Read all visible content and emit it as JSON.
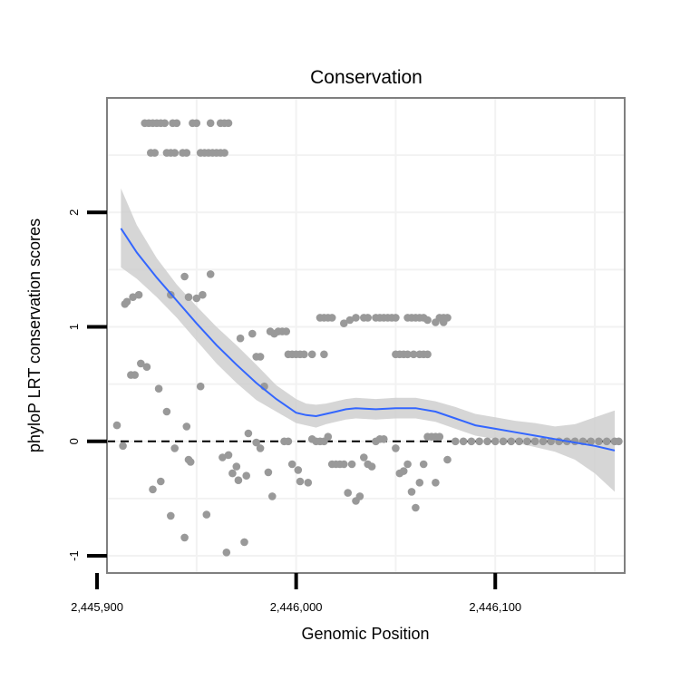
{
  "chart_data": {
    "type": "scatter",
    "title": "Conservation",
    "xlabel": "Genomic Position",
    "ylabel": "phyloP LRT conservation scores",
    "xlim": [
      2445905,
      2446165
    ],
    "ylim": [
      -1.15,
      3.0
    ],
    "x_ticks": [
      2445900,
      2446000,
      2446100
    ],
    "x_tick_labels": [
      "2,445,900",
      "2,446,000",
      "2,446,100"
    ],
    "y_ticks": [
      -1,
      0,
      1,
      2
    ],
    "y_tick_labels": [
      "-1",
      "0",
      "1",
      "2"
    ],
    "grid": true,
    "reference_line": {
      "y": 0,
      "style": "dashed",
      "color": "#000000"
    },
    "colors": {
      "points": "#999999",
      "smooth": "#3366ff",
      "ribbon": "#cccccc",
      "panel_border": "#7f7f7f",
      "grid": "#f2f2f2"
    },
    "series": [
      {
        "name": "observed scores",
        "kind": "points",
        "points": [
          [
            2445924,
            2.78
          ],
          [
            2445926,
            2.78
          ],
          [
            2445928,
            2.78
          ],
          [
            2445930,
            2.78
          ],
          [
            2445932,
            2.78
          ],
          [
            2445934,
            2.78
          ],
          [
            2445938,
            2.78
          ],
          [
            2445940,
            2.78
          ],
          [
            2445948,
            2.78
          ],
          [
            2445950,
            2.78
          ],
          [
            2445957,
            2.78
          ],
          [
            2445962,
            2.78
          ],
          [
            2445964,
            2.78
          ],
          [
            2445966,
            2.78
          ],
          [
            2445927,
            2.52
          ],
          [
            2445929,
            2.52
          ],
          [
            2445935,
            2.52
          ],
          [
            2445937,
            2.52
          ],
          [
            2445939,
            2.52
          ],
          [
            2445943,
            2.52
          ],
          [
            2445945,
            2.52
          ],
          [
            2445952,
            2.52
          ],
          [
            2445954,
            2.52
          ],
          [
            2445956,
            2.52
          ],
          [
            2445958,
            2.52
          ],
          [
            2445960,
            2.52
          ],
          [
            2445962,
            2.52
          ],
          [
            2445964,
            2.52
          ],
          [
            2445957,
            1.46
          ],
          [
            2445944,
            1.44
          ],
          [
            2445937,
            1.28
          ],
          [
            2445953,
            1.28
          ],
          [
            2445946,
            1.26
          ],
          [
            2445950,
            1.25
          ],
          [
            2445914,
            1.2
          ],
          [
            2445915,
            1.22
          ],
          [
            2445918,
            1.26
          ],
          [
            2445921,
            1.28
          ],
          [
            2445925,
            0.65
          ],
          [
            2445917,
            0.58
          ],
          [
            2445919,
            0.58
          ],
          [
            2445931,
            0.46
          ],
          [
            2445952,
            0.48
          ],
          [
            2445972,
            0.9
          ],
          [
            2445978,
            0.94
          ],
          [
            2445980,
            0.74
          ],
          [
            2445982,
            0.74
          ],
          [
            2445984,
            0.48
          ],
          [
            2445987,
            0.96
          ],
          [
            2445989,
            0.94
          ],
          [
            2445991,
            0.96
          ],
          [
            2445993,
            0.96
          ],
          [
            2445995,
            0.96
          ],
          [
            2445996,
            0.76
          ],
          [
            2445998,
            0.76
          ],
          [
            2446000,
            0.76
          ],
          [
            2446002,
            0.76
          ],
          [
            2446004,
            0.76
          ],
          [
            2446008,
            0.76
          ],
          [
            2446014,
            0.76
          ],
          [
            2446012,
            1.08
          ],
          [
            2446014,
            1.08
          ],
          [
            2446016,
            1.08
          ],
          [
            2446018,
            1.08
          ],
          [
            2446024,
            1.03
          ],
          [
            2446027,
            1.06
          ],
          [
            2446030,
            1.08
          ],
          [
            2446034,
            1.08
          ],
          [
            2446036,
            1.08
          ],
          [
            2446040,
            1.08
          ],
          [
            2446042,
            1.08
          ],
          [
            2446044,
            1.08
          ],
          [
            2446046,
            1.08
          ],
          [
            2446048,
            1.08
          ],
          [
            2446050,
            1.08
          ],
          [
            2446050,
            0.76
          ],
          [
            2446052,
            0.76
          ],
          [
            2446054,
            0.76
          ],
          [
            2446056,
            0.76
          ],
          [
            2446059,
            0.76
          ],
          [
            2446062,
            0.76
          ],
          [
            2446064,
            0.76
          ],
          [
            2446066,
            0.76
          ],
          [
            2446070,
            1.04
          ],
          [
            2446074,
            1.04
          ],
          [
            2446076,
            1.08
          ],
          [
            2446056,
            1.08
          ],
          [
            2446058,
            1.08
          ],
          [
            2446060,
            1.08
          ],
          [
            2446062,
            1.08
          ],
          [
            2446064,
            1.08
          ],
          [
            2446066,
            1.06
          ],
          [
            2446072,
            1.08
          ],
          [
            2446074,
            1.08
          ],
          [
            2445910,
            0.14
          ],
          [
            2445913,
            -0.04
          ],
          [
            2445935,
            0.26
          ],
          [
            2445939,
            -0.06
          ],
          [
            2445945,
            0.13
          ],
          [
            2445947,
            -0.18
          ],
          [
            2445922,
            0.68
          ],
          [
            2445946,
            -0.16
          ],
          [
            2445932,
            -0.35
          ],
          [
            2445928,
            -0.42
          ],
          [
            2445937,
            -0.65
          ],
          [
            2445944,
            -0.84
          ],
          [
            2445955,
            -0.64
          ],
          [
            2445965,
            -0.97
          ],
          [
            2445974,
            -0.88
          ],
          [
            2445963,
            -0.14
          ],
          [
            2445966,
            -0.12
          ],
          [
            2445968,
            -0.28
          ],
          [
            2445970,
            -0.22
          ],
          [
            2445971,
            -0.34
          ],
          [
            2445975,
            -0.3
          ],
          [
            2445976,
            0.07
          ],
          [
            2445980,
            -0.01
          ],
          [
            2445982,
            -0.06
          ],
          [
            2445986,
            -0.27
          ],
          [
            2445988,
            -0.48
          ],
          [
            2445994,
            0
          ],
          [
            2445996,
            0
          ],
          [
            2445998,
            -0.2
          ],
          [
            2446001,
            -0.25
          ],
          [
            2446002,
            -0.35
          ],
          [
            2446006,
            -0.36
          ],
          [
            2446008,
            0.02
          ],
          [
            2446010,
            0
          ],
          [
            2446012,
            0
          ],
          [
            2446014,
            0
          ],
          [
            2446016,
            0.04
          ],
          [
            2446018,
            -0.2
          ],
          [
            2446020,
            -0.2
          ],
          [
            2446022,
            -0.2
          ],
          [
            2446024,
            -0.2
          ],
          [
            2446026,
            -0.45
          ],
          [
            2446028,
            -0.2
          ],
          [
            2446030,
            -0.52
          ],
          [
            2446032,
            -0.48
          ],
          [
            2446034,
            -0.14
          ],
          [
            2446036,
            -0.2
          ],
          [
            2446038,
            -0.22
          ],
          [
            2446040,
            0
          ],
          [
            2446042,
            0.02
          ],
          [
            2446044,
            0.02
          ],
          [
            2446050,
            -0.06
          ],
          [
            2446052,
            -0.28
          ],
          [
            2446054,
            -0.26
          ],
          [
            2446056,
            -0.2
          ],
          [
            2446058,
            -0.44
          ],
          [
            2446060,
            -0.58
          ],
          [
            2446062,
            -0.36
          ],
          [
            2446064,
            -0.2
          ],
          [
            2446070,
            -0.36
          ],
          [
            2446066,
            0.04
          ],
          [
            2446068,
            0.04
          ],
          [
            2446070,
            0.04
          ],
          [
            2446072,
            0.04
          ],
          [
            2446076,
            -0.16
          ],
          [
            2446080,
            0
          ],
          [
            2446084,
            0
          ],
          [
            2446088,
            0
          ],
          [
            2446092,
            0
          ],
          [
            2446096,
            0
          ],
          [
            2446100,
            0
          ],
          [
            2446104,
            0
          ],
          [
            2446108,
            0
          ],
          [
            2446112,
            0
          ],
          [
            2446116,
            0
          ],
          [
            2446120,
            0
          ],
          [
            2446124,
            0
          ],
          [
            2446128,
            0
          ],
          [
            2446132,
            0
          ],
          [
            2446136,
            0
          ],
          [
            2446140,
            0
          ],
          [
            2446144,
            0
          ],
          [
            2446148,
            0
          ],
          [
            2446152,
            0
          ],
          [
            2446156,
            0
          ],
          [
            2446160,
            0
          ],
          [
            2446162,
            0
          ]
        ]
      },
      {
        "name": "loess fit",
        "kind": "line",
        "x": [
          2445912,
          2445920,
          2445930,
          2445940,
          2445950,
          2445960,
          2445970,
          2445980,
          2445990,
          2446000,
          2446005,
          2446010,
          2446015,
          2446020,
          2446025,
          2446030,
          2446040,
          2446050,
          2446060,
          2446070,
          2446080,
          2446090,
          2446100,
          2446110,
          2446120,
          2446130,
          2446140,
          2446150,
          2446160
        ],
        "y": [
          1.86,
          1.65,
          1.43,
          1.23,
          1.03,
          0.84,
          0.67,
          0.51,
          0.37,
          0.25,
          0.23,
          0.22,
          0.24,
          0.26,
          0.28,
          0.29,
          0.28,
          0.29,
          0.29,
          0.26,
          0.2,
          0.14,
          0.11,
          0.08,
          0.05,
          0.02,
          -0.01,
          -0.04,
          -0.08
        ]
      },
      {
        "name": "confidence band",
        "kind": "ribbon",
        "x": [
          2445912,
          2445920,
          2445930,
          2445940,
          2445950,
          2445960,
          2445970,
          2445980,
          2445990,
          2446000,
          2446005,
          2446010,
          2446015,
          2446020,
          2446025,
          2446030,
          2446040,
          2446050,
          2446060,
          2446070,
          2446080,
          2446090,
          2446100,
          2446110,
          2446120,
          2446130,
          2446140,
          2446150,
          2446160
        ],
        "upper": [
          2.21,
          1.89,
          1.6,
          1.37,
          1.18,
          1.0,
          0.84,
          0.67,
          0.49,
          0.37,
          0.33,
          0.32,
          0.33,
          0.35,
          0.37,
          0.38,
          0.37,
          0.38,
          0.38,
          0.35,
          0.3,
          0.24,
          0.21,
          0.18,
          0.16,
          0.13,
          0.15,
          0.21,
          0.27
        ],
        "lower": [
          1.52,
          1.42,
          1.26,
          1.08,
          0.88,
          0.68,
          0.51,
          0.36,
          0.26,
          0.16,
          0.14,
          0.12,
          0.15,
          0.17,
          0.19,
          0.2,
          0.19,
          0.2,
          0.2,
          0.17,
          0.11,
          0.05,
          0.02,
          -0.01,
          -0.05,
          -0.09,
          -0.16,
          -0.28,
          -0.44
        ]
      }
    ]
  }
}
